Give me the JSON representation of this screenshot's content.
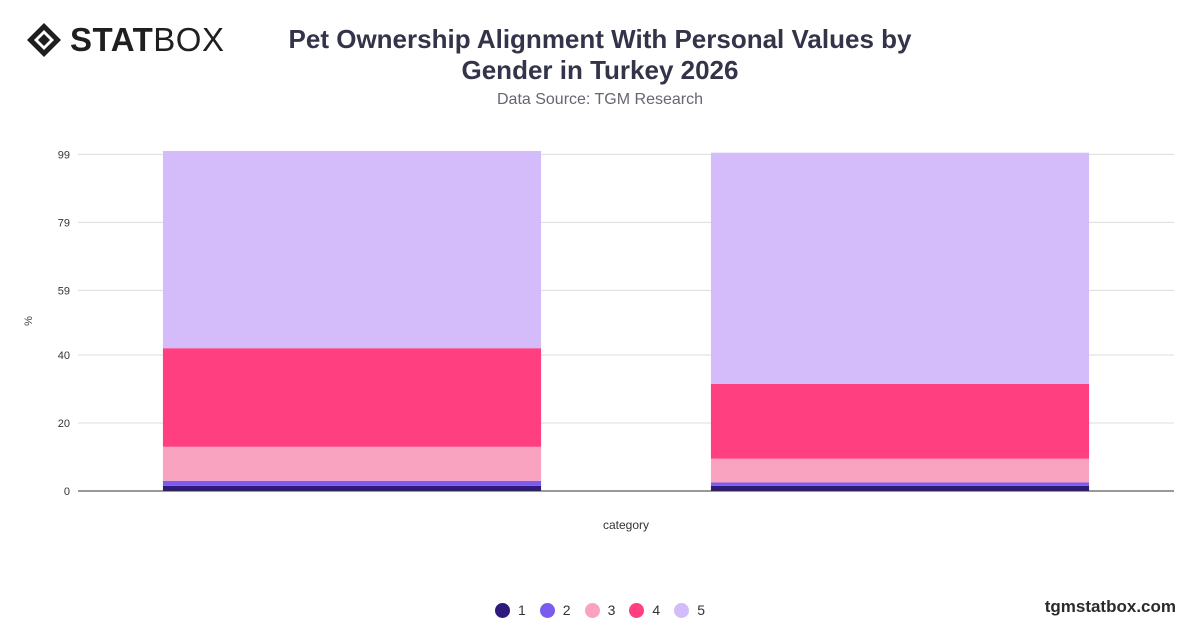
{
  "logo": {
    "text_bold": "STAT",
    "text_light": "BOX"
  },
  "chart_data": {
    "type": "bar",
    "stacked": true,
    "title": "Pet Ownership Alignment With Personal Values by Gender in Turkey 2026",
    "subtitle": "Data Source: TGM Research",
    "xlabel": "category",
    "ylabel": "%",
    "ylim": [
      0,
      100
    ],
    "y_ticks": [
      0,
      20,
      40,
      59,
      79,
      99
    ],
    "grid": true,
    "legend_position": "bottom",
    "categories": [
      "",
      ""
    ],
    "series": [
      {
        "name": "1",
        "color": "#2e1a7a",
        "values": [
          1.5,
          1.5
        ]
      },
      {
        "name": "2",
        "color": "#7b5cee",
        "values": [
          1.5,
          1
        ]
      },
      {
        "name": "3",
        "color": "#f9a3c0",
        "values": [
          10,
          7
        ]
      },
      {
        "name": "4",
        "color": "#ff3f80",
        "values": [
          29,
          22
        ]
      },
      {
        "name": "5",
        "color": "#d4bbfa",
        "values": [
          58,
          68
        ]
      }
    ]
  },
  "footer": {
    "url": "tgmstatbox.com"
  }
}
